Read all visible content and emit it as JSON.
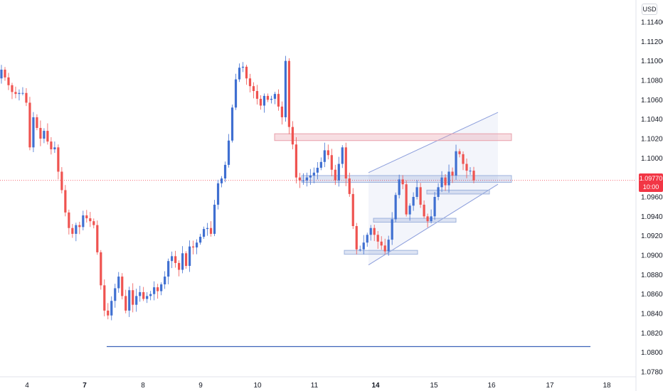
{
  "currency": "USD",
  "last_price": "1.09770",
  "countdown": "10:00",
  "colors": {
    "bull": "#3f6fd1",
    "bear": "#ef5350",
    "resistance_zone": "#e8a0ab",
    "support_zone": "#9fb3dd",
    "channel": "#8c9edc",
    "support_line": "#3d63b8",
    "price_line": "#f23645"
  },
  "chart_data": {
    "type": "candlestick",
    "symbol_price_axis": "USD",
    "y_ticks": [
      "1.11400",
      "1.11200",
      "1.11000",
      "1.10800",
      "1.10600",
      "1.10400",
      "1.10200",
      "1.10000",
      "1.09800",
      "1.09600",
      "1.09400",
      "1.09200",
      "1.09000",
      "1.08800",
      "1.08600",
      "1.08400",
      "1.08200",
      "1.08000",
      "1.07800"
    ],
    "x_ticks": [
      {
        "label": "4",
        "bold": false
      },
      {
        "label": "7",
        "bold": true
      },
      {
        "label": "8",
        "bold": false
      },
      {
        "label": "9",
        "bold": false
      },
      {
        "label": "10",
        "bold": false
      },
      {
        "label": "11",
        "bold": false
      },
      {
        "label": "14",
        "bold": true
      },
      {
        "label": "15",
        "bold": false
      },
      {
        "label": "16",
        "bold": false
      },
      {
        "label": "17",
        "bold": false
      },
      {
        "label": "18",
        "bold": false
      }
    ],
    "ylim": [
      1.0772,
      1.1152
    ],
    "last_price": 1.0977,
    "closes": [
      1.1091,
      1.1083,
      1.1075,
      1.1068,
      1.1066,
      1.1067,
      1.1067,
      1.1057,
      1.1011,
      1.1042,
      1.1031,
      1.102,
      1.1028,
      1.1017,
      1.1009,
      1.1011,
      1.0986,
      1.0967,
      1.0944,
      1.0928,
      1.0922,
      1.0931,
      1.0929,
      1.0941,
      1.0938,
      1.0935,
      1.0931,
      1.0903,
      1.0869,
      1.0843,
      1.0838,
      1.0853,
      1.0866,
      1.0878,
      1.0858,
      1.0843,
      1.0864,
      1.0849,
      1.0858,
      1.0862,
      1.0855,
      1.0858,
      1.086,
      1.0867,
      1.0863,
      1.087,
      1.0878,
      1.0894,
      1.0899,
      1.0892,
      1.0885,
      1.0902,
      1.0889,
      1.0909,
      1.0908,
      1.0913,
      1.0919,
      1.0927,
      1.0928,
      1.0922,
      1.0952,
      1.0974,
      1.0979,
      1.0993,
      1.1018,
      1.1052,
      1.1081,
      1.1093,
      1.1094,
      1.1082,
      1.1074,
      1.1069,
      1.1061,
      1.1054,
      1.1064,
      1.106,
      1.1061,
      1.1066,
      1.1053,
      1.1042,
      1.11,
      1.1032,
      1.1014,
      1.098,
      1.0977,
      1.0977,
      1.098,
      1.0982,
      1.0985,
      1.099,
      1.0996,
      1.1008,
      1.1003,
      1.0988,
      1.0977,
      1.0994,
      1.1011,
      1.0979,
      1.0963,
      1.093,
      1.0906,
      1.0906,
      1.0913,
      1.0921,
      1.0928,
      1.0921,
      1.0914,
      1.091,
      1.0904,
      1.0916,
      1.0937,
      1.0962,
      1.0978,
      1.0973,
      1.0942,
      1.0951,
      1.096,
      1.097,
      1.0952,
      1.094,
      1.0935,
      1.094,
      1.096,
      1.097,
      1.098,
      1.0972,
      1.0986,
      1.0982,
      1.1007,
      1.1004,
      1.0994,
      1.0987,
      1.0987,
      1.0977
    ],
    "key_levels": {
      "support_line": 1.0806,
      "resistance_zone": [
        1.1018,
        1.1025
      ],
      "support_zones": [
        [
          1.0975,
          1.0982
        ],
        [
          1.0963,
          1.0967
        ],
        [
          1.0934,
          1.0938
        ],
        [
          1.0901,
          1.0905
        ]
      ]
    },
    "rising_channel": {
      "lower": [
        1.089,
        1.0973
      ],
      "upper": [
        1.0985,
        1.1047
      ]
    }
  }
}
